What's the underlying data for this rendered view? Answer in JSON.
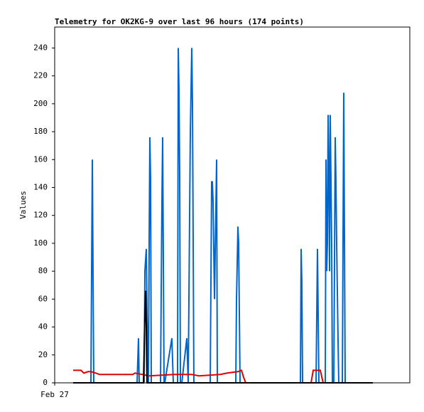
{
  "chart_data": {
    "type": "line",
    "title": "Telemetry for OK2KG-9 over last 96 hours (174 points)",
    "y_label": "Values",
    "xlim": [
      0,
      500
    ],
    "xticks": [
      {
        "value": 0,
        "label": "Feb 27"
      }
    ],
    "ylim": [
      0,
      255
    ],
    "yticks": [
      0,
      20,
      40,
      60,
      80,
      100,
      120,
      140,
      160,
      180,
      200,
      220,
      240
    ],
    "series": [
      {
        "name": "series-blue",
        "color": "#0066cc",
        "x": [
          26,
          51,
          52,
          53,
          54,
          55,
          116,
          118,
          119,
          126,
          127,
          129,
          130,
          132,
          133,
          134,
          135,
          136,
          149,
          151,
          152,
          153,
          154,
          155,
          165,
          167,
          173,
          174,
          175,
          176,
          177,
          179,
          186,
          188,
          191,
          193,
          194,
          195,
          196,
          219,
          220,
          221,
          222,
          223,
          225,
          228,
          229,
          255,
          256,
          258,
          259,
          261,
          346,
          347,
          348,
          349,
          368,
          370,
          372,
          381,
          382,
          383,
          384,
          385,
          386,
          387,
          388,
          389,
          390,
          391,
          393,
          395,
          396,
          397,
          399,
          400,
          405,
          406,
          407,
          408,
          409,
          448
        ],
        "values": [
          0,
          0,
          80,
          160,
          80,
          0,
          0,
          32,
          0,
          0,
          80,
          96,
          50,
          0,
          100,
          176,
          146,
          0,
          0,
          130,
          176,
          88,
          0,
          0,
          32,
          0,
          0,
          240,
          210,
          150,
          0,
          0,
          32,
          0,
          180,
          240,
          200,
          100,
          0,
          0,
          72,
          144,
          144,
          130,
          60,
          160,
          0,
          0,
          60,
          112,
          100,
          0,
          0,
          96,
          72,
          0,
          0,
          96,
          0,
          0,
          160,
          80,
          100,
          192,
          152,
          80,
          192,
          145,
          100,
          0,
          0,
          176,
          145,
          100,
          30,
          0,
          0,
          104,
          208,
          104,
          0,
          0
        ]
      },
      {
        "name": "series-red",
        "color": "#e00000",
        "x": [
          26,
          37,
          41,
          47,
          51,
          58,
          63,
          110,
          113,
          123,
          133,
          168,
          193,
          203,
          233,
          243,
          258,
          263,
          266,
          269,
          361,
          364,
          374,
          378,
          448
        ],
        "values": [
          9,
          9,
          7,
          8,
          8,
          7,
          6,
          6,
          7,
          6,
          5,
          6,
          6,
          5,
          6,
          7,
          8,
          9,
          4,
          0,
          0,
          9,
          9,
          0,
          0
        ]
      },
      {
        "name": "series-black",
        "color": "#000000",
        "x": [
          26,
          125,
          127,
          128,
          129,
          130,
          448
        ],
        "values": [
          0,
          0,
          50,
          66,
          40,
          0,
          0
        ]
      }
    ]
  }
}
